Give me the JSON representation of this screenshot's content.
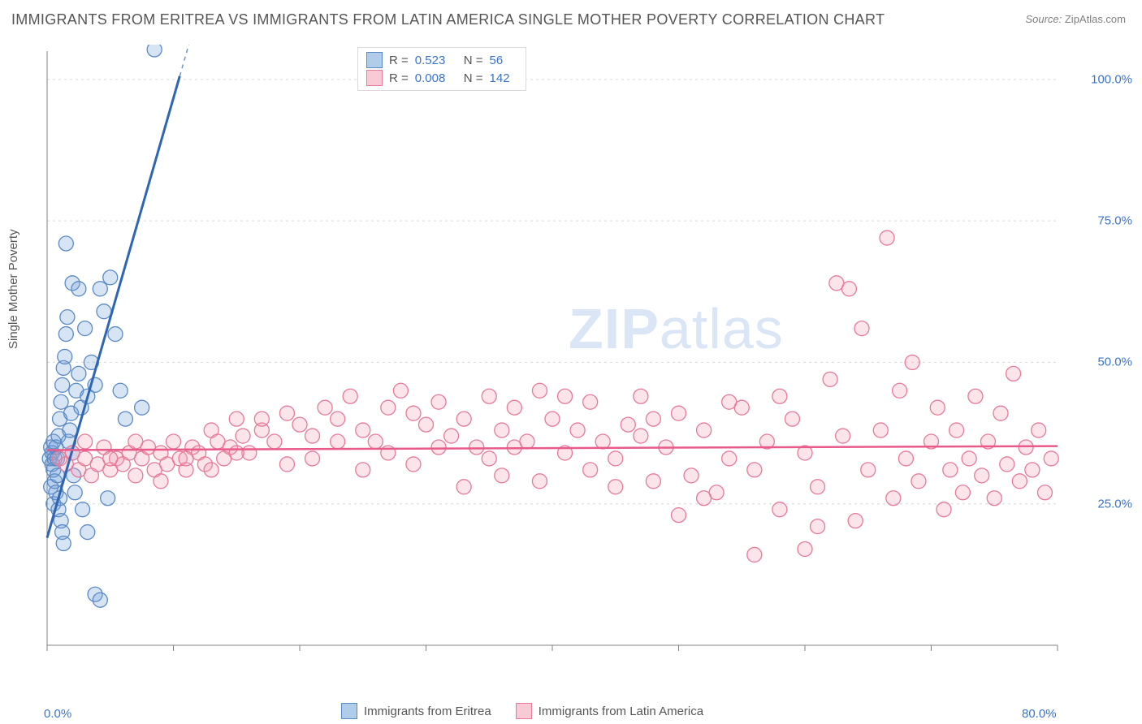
{
  "title": "IMMIGRANTS FROM ERITREA VS IMMIGRANTS FROM LATIN AMERICA SINGLE MOTHER POVERTY CORRELATION CHART",
  "source_label": "Source: ",
  "source_value": "ZipAtlas.com",
  "ylabel": "Single Mother Poverty",
  "watermark_a": "ZIP",
  "watermark_b": "atlas",
  "chart": {
    "type": "scatter-with-regression",
    "background_color": "#ffffff",
    "grid_color": "#d9d9d9",
    "grid_dash": "3,4",
    "axis_color": "#808080",
    "tick_color": "#808080",
    "tick_label_color": "#3874c9",
    "label_color": "#555555",
    "title_fontsize": 18,
    "label_fontsize": 15,
    "tick_fontsize": 15,
    "xlim": [
      0,
      80
    ],
    "ylim": [
      0,
      105
    ],
    "x_ticks": [
      0,
      10,
      20,
      30,
      40,
      50,
      60,
      70,
      80
    ],
    "x_tick_labels": [
      "0.0%",
      "",
      "",
      "",
      "",
      "",
      "",
      "",
      "80.0%"
    ],
    "y_ticks": [
      25,
      50,
      75,
      100
    ],
    "y_tick_labels": [
      "25.0%",
      "50.0%",
      "75.0%",
      "100.0%"
    ],
    "marker_radius": 9,
    "marker_stroke_width": 1.3,
    "marker_fill_opacity": 0.28,
    "series": [
      {
        "name": "Immigrants from Eritrea",
        "color": "#6f9ed8",
        "stroke": "#5a8ac6",
        "reg_color": "#2e66b3",
        "reg_width": 3,
        "reg_solid_to_x": 10.5,
        "reg_x0": 0,
        "reg_y0": 19,
        "reg_x1": 13,
        "reg_y1": 120,
        "R": "0.523",
        "N": "56",
        "points": [
          [
            0.2,
            33
          ],
          [
            0.3,
            35
          ],
          [
            0.3,
            28
          ],
          [
            0.4,
            32
          ],
          [
            0.4,
            34
          ],
          [
            0.5,
            25
          ],
          [
            0.5,
            36
          ],
          [
            0.5,
            31
          ],
          [
            0.6,
            33
          ],
          [
            0.6,
            29
          ],
          [
            0.7,
            35
          ],
          [
            0.7,
            27
          ],
          [
            0.8,
            30
          ],
          [
            0.8,
            33
          ],
          [
            0.9,
            37
          ],
          [
            0.9,
            24
          ],
          [
            1.0,
            40
          ],
          [
            1.0,
            26
          ],
          [
            1.1,
            43
          ],
          [
            1.1,
            22
          ],
          [
            1.2,
            46
          ],
          [
            1.2,
            20
          ],
          [
            1.3,
            49
          ],
          [
            1.3,
            18
          ],
          [
            1.4,
            51
          ],
          [
            1.5,
            55
          ],
          [
            1.6,
            58
          ],
          [
            1.7,
            36
          ],
          [
            1.8,
            38
          ],
          [
            1.9,
            41
          ],
          [
            2.0,
            34
          ],
          [
            2.1,
            30
          ],
          [
            2.2,
            27
          ],
          [
            2.3,
            45
          ],
          [
            2.5,
            48
          ],
          [
            2.7,
            42
          ],
          [
            3.0,
            56
          ],
          [
            3.2,
            44
          ],
          [
            3.5,
            50
          ],
          [
            3.8,
            46
          ],
          [
            4.2,
            63
          ],
          [
            4.5,
            59
          ],
          [
            5.0,
            65
          ],
          [
            5.4,
            55
          ],
          [
            2.8,
            24
          ],
          [
            3.2,
            20
          ],
          [
            3.8,
            9
          ],
          [
            4.2,
            8
          ],
          [
            1.5,
            71
          ],
          [
            2.0,
            64
          ],
          [
            2.5,
            63
          ],
          [
            5.8,
            45
          ],
          [
            6.2,
            40
          ],
          [
            7.5,
            42
          ],
          [
            4.8,
            26
          ],
          [
            8.5,
            107
          ]
        ]
      },
      {
        "name": "Immigrants from Latin America",
        "color": "#f29fb5",
        "stroke": "#e77a99",
        "reg_color": "#e85a8a",
        "reg_width": 2.5,
        "reg_x0": 0,
        "reg_y0": 34.5,
        "reg_x1": 80,
        "reg_y1": 35.2,
        "R": "0.008",
        "N": "142",
        "points": [
          [
            1,
            33
          ],
          [
            1.5,
            32
          ],
          [
            2,
            34
          ],
          [
            2.5,
            31
          ],
          [
            3,
            33
          ],
          [
            3.5,
            30
          ],
          [
            4,
            32
          ],
          [
            4.5,
            35
          ],
          [
            5,
            31
          ],
          [
            5.5,
            33
          ],
          [
            6,
            32
          ],
          [
            6.5,
            34
          ],
          [
            7,
            30
          ],
          [
            7.5,
            33
          ],
          [
            8,
            35
          ],
          [
            8.5,
            31
          ],
          [
            9,
            34
          ],
          [
            9.5,
            32
          ],
          [
            10,
            36
          ],
          [
            10.5,
            33
          ],
          [
            11,
            31
          ],
          [
            11.5,
            35
          ],
          [
            12,
            34
          ],
          [
            12.5,
            32
          ],
          [
            13,
            38
          ],
          [
            13.5,
            36
          ],
          [
            14,
            33
          ],
          [
            14.5,
            35
          ],
          [
            15,
            40
          ],
          [
            15.5,
            37
          ],
          [
            16,
            34
          ],
          [
            17,
            38
          ],
          [
            18,
            36
          ],
          [
            19,
            41
          ],
          [
            20,
            39
          ],
          [
            21,
            37
          ],
          [
            22,
            42
          ],
          [
            23,
            40
          ],
          [
            24,
            44
          ],
          [
            25,
            38
          ],
          [
            26,
            36
          ],
          [
            27,
            42
          ],
          [
            28,
            45
          ],
          [
            29,
            41
          ],
          [
            30,
            39
          ],
          [
            31,
            43
          ],
          [
            32,
            37
          ],
          [
            33,
            40
          ],
          [
            34,
            35
          ],
          [
            35,
            44
          ],
          [
            36,
            38
          ],
          [
            37,
            42
          ],
          [
            38,
            36
          ],
          [
            39,
            45
          ],
          [
            40,
            40
          ],
          [
            41,
            34
          ],
          [
            42,
            38
          ],
          [
            43,
            43
          ],
          [
            44,
            36
          ],
          [
            45,
            33
          ],
          [
            46,
            39
          ],
          [
            47,
            37
          ],
          [
            48,
            29
          ],
          [
            49,
            35
          ],
          [
            50,
            41
          ],
          [
            51,
            30
          ],
          [
            52,
            38
          ],
          [
            53,
            27
          ],
          [
            54,
            33
          ],
          [
            55,
            42
          ],
          [
            56,
            31
          ],
          [
            57,
            36
          ],
          [
            58,
            24
          ],
          [
            59,
            40
          ],
          [
            60,
            34
          ],
          [
            61,
            28
          ],
          [
            62,
            47
          ],
          [
            62.5,
            64
          ],
          [
            63,
            37
          ],
          [
            63.5,
            63
          ],
          [
            64,
            22
          ],
          [
            64.5,
            56
          ],
          [
            65,
            31
          ],
          [
            66,
            38
          ],
          [
            66.5,
            72
          ],
          [
            67,
            26
          ],
          [
            67.5,
            45
          ],
          [
            68,
            33
          ],
          [
            68.5,
            50
          ],
          [
            69,
            29
          ],
          [
            70,
            36
          ],
          [
            70.5,
            42
          ],
          [
            71,
            24
          ],
          [
            71.5,
            31
          ],
          [
            72,
            38
          ],
          [
            72.5,
            27
          ],
          [
            73,
            33
          ],
          [
            73.5,
            44
          ],
          [
            74,
            30
          ],
          [
            74.5,
            36
          ],
          [
            75,
            26
          ],
          [
            75.5,
            41
          ],
          [
            76,
            32
          ],
          [
            76.5,
            48
          ],
          [
            77,
            29
          ],
          [
            77.5,
            35
          ],
          [
            78,
            31
          ],
          [
            78.5,
            38
          ],
          [
            79,
            27
          ],
          [
            79.5,
            33
          ],
          [
            60,
            17
          ],
          [
            61,
            21
          ],
          [
            56,
            16
          ],
          [
            58,
            44
          ],
          [
            50,
            23
          ],
          [
            52,
            26
          ],
          [
            47,
            44
          ],
          [
            45,
            28
          ],
          [
            43,
            31
          ],
          [
            41,
            44
          ],
          [
            39,
            29
          ],
          [
            37,
            35
          ],
          [
            35,
            33
          ],
          [
            33,
            28
          ],
          [
            31,
            35
          ],
          [
            29,
            32
          ],
          [
            27,
            34
          ],
          [
            25,
            31
          ],
          [
            23,
            36
          ],
          [
            21,
            33
          ],
          [
            19,
            32
          ],
          [
            17,
            40
          ],
          [
            15,
            34
          ],
          [
            13,
            31
          ],
          [
            11,
            33
          ],
          [
            9,
            29
          ],
          [
            7,
            36
          ],
          [
            5,
            33
          ],
          [
            3,
            36
          ],
          [
            36,
            30
          ],
          [
            48,
            40
          ],
          [
            54,
            43
          ]
        ]
      }
    ]
  },
  "legend_top": [
    {
      "swatch_fill": "#b0cceb",
      "swatch_stroke": "#5a8ac6",
      "R_label": "R =",
      "R": "0.523",
      "N_label": "N =",
      "N": "56"
    },
    {
      "swatch_fill": "#f9c9d6",
      "swatch_stroke": "#e77a99",
      "R_label": "R =",
      "R": "0.008",
      "N_label": "N =",
      "N": "142"
    }
  ],
  "legend_bottom": [
    {
      "swatch_fill": "#b0cceb",
      "swatch_stroke": "#5a8ac6",
      "label": "Immigrants from Eritrea"
    },
    {
      "swatch_fill": "#f9c9d6",
      "swatch_stroke": "#e77a99",
      "label": "Immigrants from Latin America"
    }
  ]
}
